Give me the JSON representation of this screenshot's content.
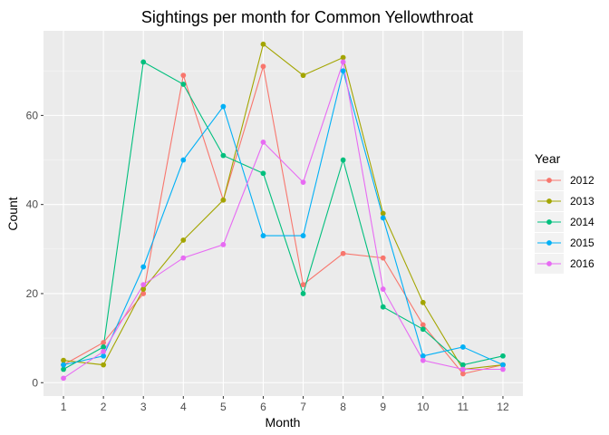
{
  "chart_data": {
    "type": "line",
    "title": "Sightings per month for Common Yellowthroat",
    "xlabel": "Month",
    "ylabel": "Count",
    "x": [
      1,
      2,
      3,
      4,
      5,
      6,
      7,
      8,
      9,
      10,
      11,
      12
    ],
    "xticks": [
      "1",
      "2",
      "3",
      "4",
      "5",
      "6",
      "7",
      "8",
      "9",
      "10",
      "11",
      "12"
    ],
    "yticks": [
      0,
      20,
      40,
      60
    ],
    "xlim": [
      0.5,
      12.5
    ],
    "ylim": [
      -3,
      79
    ],
    "grid": true,
    "legend": {
      "title": "Year",
      "position": "right"
    },
    "series": [
      {
        "name": "2012",
        "color": "#F8766D",
        "values": [
          4,
          9,
          20,
          69,
          41,
          71,
          22,
          29,
          28,
          13,
          2,
          4
        ]
      },
      {
        "name": "2013",
        "color": "#A3A500",
        "values": [
          5,
          4,
          21,
          32,
          41,
          76,
          69,
          73,
          38,
          18,
          3,
          4
        ]
      },
      {
        "name": "2014",
        "color": "#00BF7D",
        "values": [
          3,
          8,
          72,
          67,
          51,
          47,
          20,
          50,
          17,
          12,
          4,
          6
        ]
      },
      {
        "name": "2015",
        "color": "#00B0F6",
        "values": [
          4,
          6,
          26,
          50,
          62,
          33,
          33,
          70,
          37,
          6,
          8,
          4
        ]
      },
      {
        "name": "2016",
        "color": "#E76BF3",
        "values": [
          1,
          7,
          22,
          28,
          31,
          54,
          45,
          72,
          21,
          5,
          3,
          3
        ]
      }
    ]
  }
}
